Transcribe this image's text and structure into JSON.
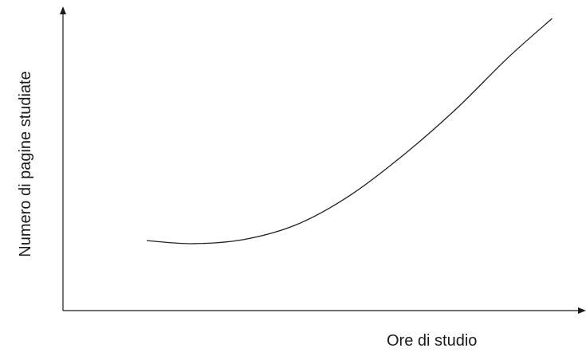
{
  "chart_data": {
    "type": "line",
    "title": "",
    "xlabel": "Ore di studio",
    "ylabel": "Numero di pagine studiate",
    "xlim": [
      0,
      10
    ],
    "ylim": [
      0,
      10
    ],
    "grid": false,
    "legend": "none",
    "colors": {
      "axis": "#1a1a1a",
      "line": "#222222"
    },
    "series": [
      {
        "x": [
          1.6,
          2.5,
          3.5,
          4.5,
          5.5,
          6.5,
          7.5,
          8.5,
          9.35
        ],
        "y": [
          2.3,
          2.2,
          2.35,
          2.85,
          3.8,
          5.1,
          6.6,
          8.3,
          9.6
        ]
      }
    ]
  }
}
